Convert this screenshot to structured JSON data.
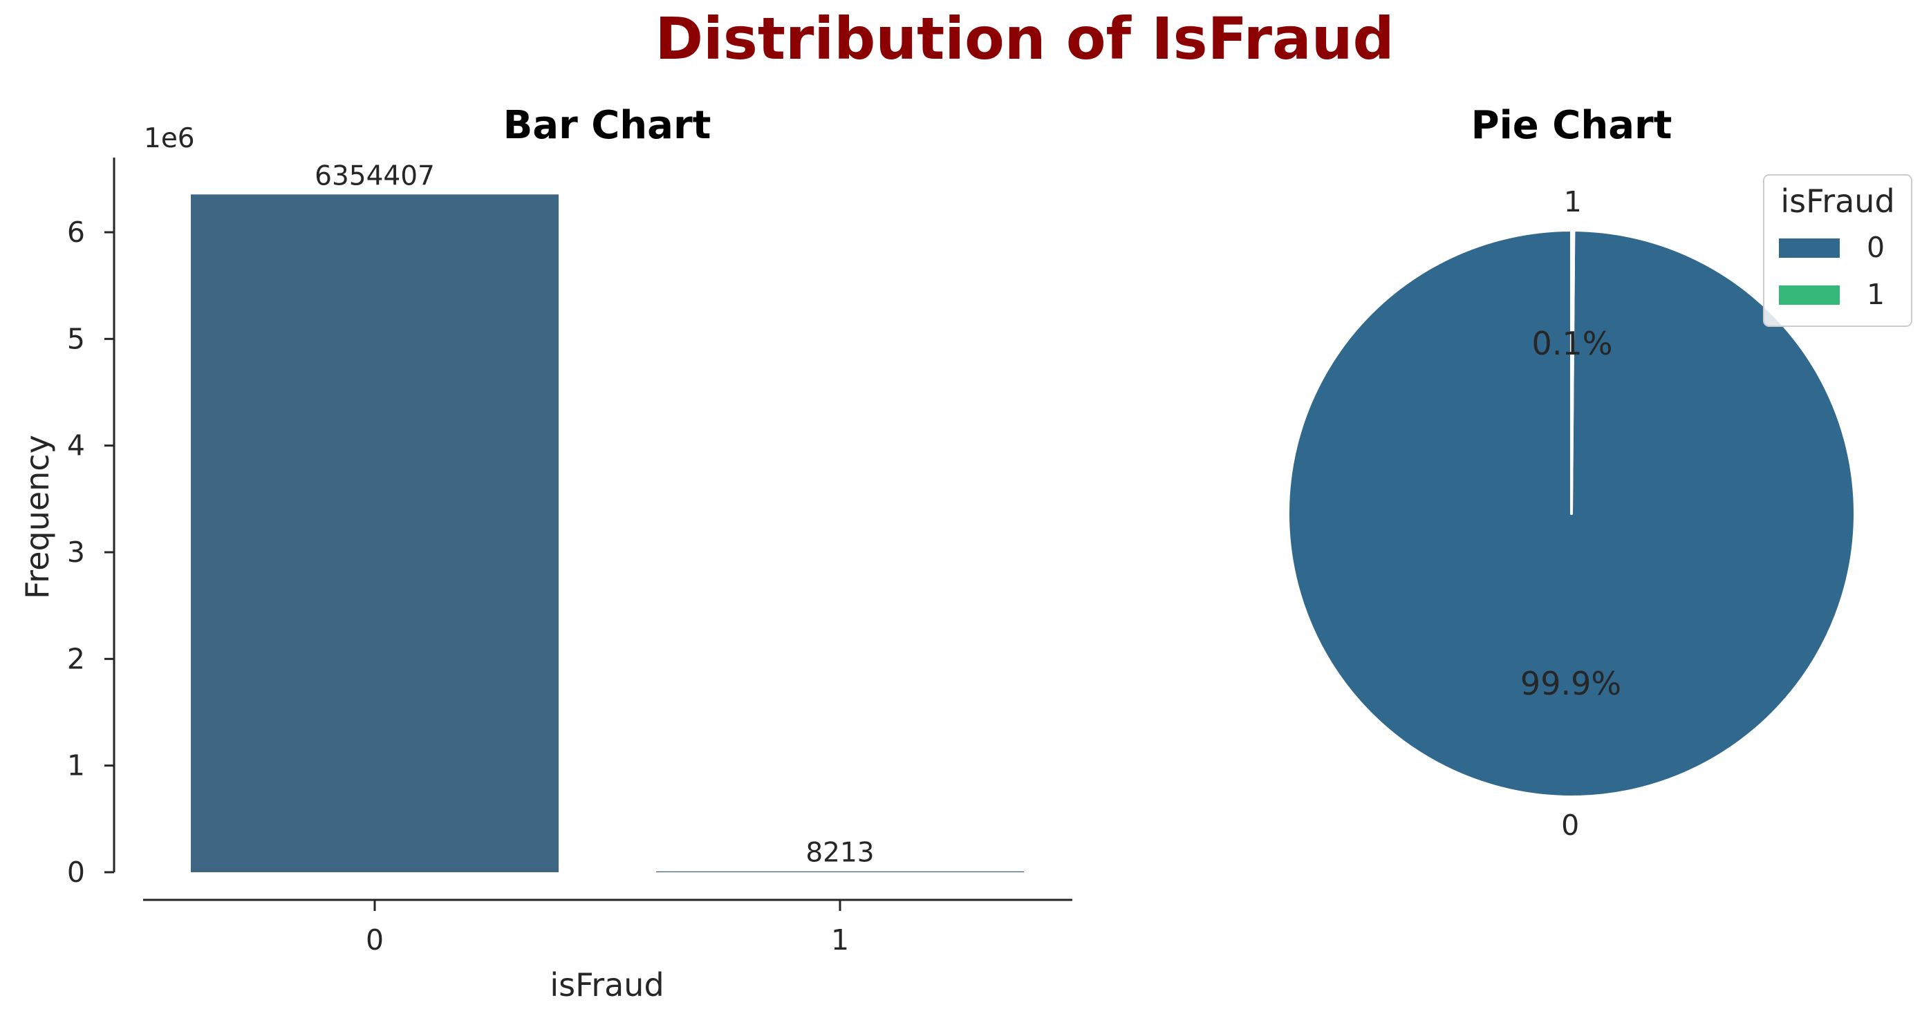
{
  "title": "Distribution of IsFraud",
  "colors": {
    "title": "#8b0000",
    "bar": "#3e6682",
    "pie_0": "#31688e",
    "pie_1": "#35b779",
    "edge": "#ffffff"
  },
  "chart_data": [
    {
      "type": "bar",
      "title": "Bar Chart",
      "xlabel": "isFraud",
      "ylabel": "Frequency",
      "categories": [
        "0",
        "1"
      ],
      "values": [
        6354407,
        8213
      ],
      "data_labels": [
        "6354407",
        "8213"
      ],
      "ylim": [
        0,
        6700000
      ],
      "yticks": [
        0,
        1000000,
        2000000,
        3000000,
        4000000,
        5000000,
        6000000
      ],
      "ytick_labels": [
        "0",
        "1",
        "2",
        "3",
        "4",
        "5",
        "6"
      ],
      "y_offset_text": "1e6",
      "grid": false
    },
    {
      "type": "pie",
      "title": "Pie Chart",
      "labels": [
        "0",
        "1"
      ],
      "values": [
        6354407,
        8213
      ],
      "percent_labels": [
        "99.9%",
        "0.1%"
      ],
      "start_angle_deg": 90,
      "legend": {
        "title": "isFraud",
        "entries": [
          "0",
          "1"
        ],
        "placement": "upper-right"
      }
    }
  ]
}
